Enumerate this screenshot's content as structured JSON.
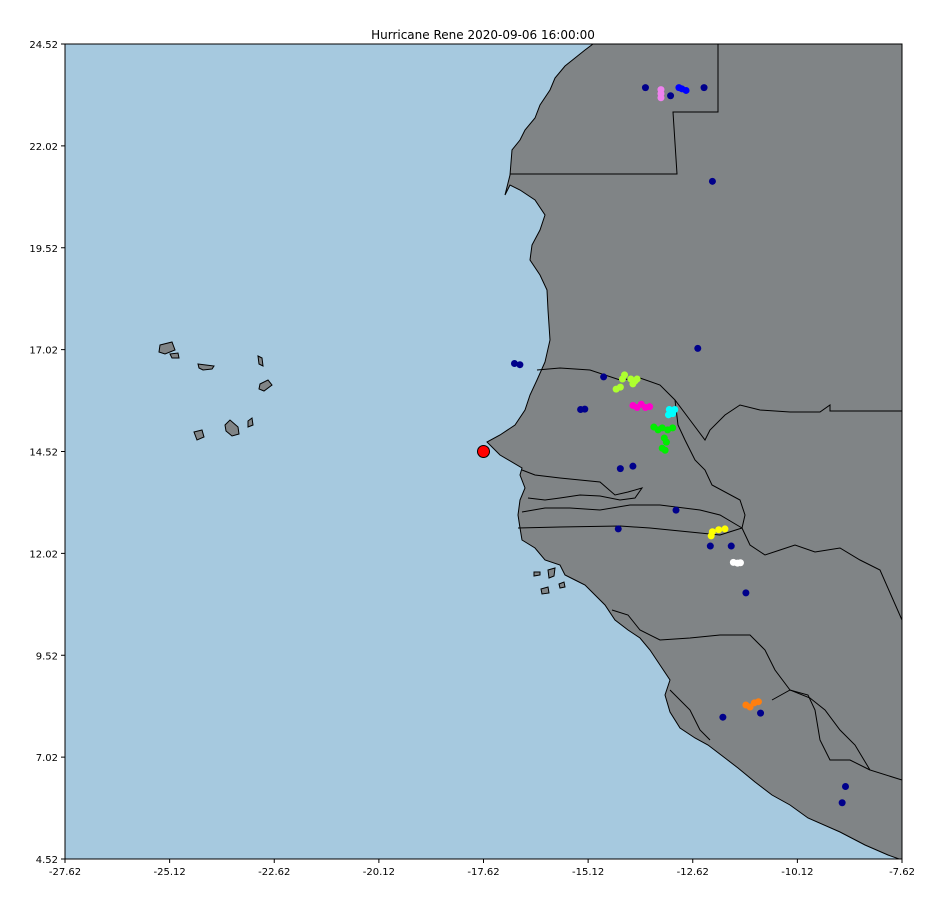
{
  "title": "Hurricane Rene 2020-09-06 16:00:00",
  "colors": {
    "ocean": "#a6c9df",
    "land": "#808486",
    "border": "#000000",
    "hurricane_marker": "#ff0000",
    "station_default": "#00008b"
  },
  "chart_data": {
    "type": "scatter",
    "title": "Hurricane Rene 2020-09-06 16:00:00",
    "xlim": [
      -27.62,
      -7.62
    ],
    "ylim": [
      4.52,
      24.52
    ],
    "x_ticks": [
      "-27.62",
      "-25.12",
      "-22.62",
      "-20.12",
      "-17.62",
      "-15.12",
      "-12.62",
      "-10.12",
      "-7.62"
    ],
    "y_ticks": [
      "4.52",
      "7.02",
      "9.52",
      "12.02",
      "14.52",
      "17.02",
      "19.52",
      "22.02",
      "24.52"
    ],
    "hurricane_position": {
      "lon": -17.62,
      "lat": 14.52,
      "color": "#ff0000"
    },
    "series": [
      {
        "color": "#00008b",
        "points": [
          [
            -13.75,
            23.45
          ],
          [
            -13.15,
            23.25
          ],
          [
            -12.35,
            23.45
          ],
          [
            -12.15,
            21.15
          ],
          [
            -12.5,
            17.05
          ],
          [
            -16.75,
            16.65
          ],
          [
            -16.88,
            16.68
          ],
          [
            -14.75,
            16.35
          ],
          [
            -15.2,
            15.56
          ],
          [
            -15.3,
            15.55
          ],
          [
            -14.35,
            14.1
          ],
          [
            -14.05,
            14.16
          ],
          [
            -13.02,
            13.08
          ],
          [
            -14.4,
            12.62
          ],
          [
            -12.2,
            12.2
          ],
          [
            -11.7,
            12.2
          ],
          [
            -11.35,
            11.05
          ],
          [
            -11.9,
            8.0
          ],
          [
            -11.0,
            8.1
          ],
          [
            -8.97,
            6.3
          ],
          [
            -9.05,
            5.9
          ]
        ]
      },
      {
        "color": "#ee82ee",
        "points": [
          [
            -13.38,
            23.4
          ],
          [
            -13.38,
            23.3
          ],
          [
            -13.38,
            23.2
          ]
        ]
      },
      {
        "color": "#0000ff",
        "points": [
          [
            -12.95,
            23.45
          ],
          [
            -12.88,
            23.42
          ],
          [
            -12.78,
            23.38
          ]
        ]
      },
      {
        "color": "#adff2f",
        "points": [
          [
            -14.3,
            16.3
          ],
          [
            -14.25,
            16.4
          ],
          [
            -14.1,
            16.3
          ],
          [
            -14.0,
            16.25
          ],
          [
            -13.95,
            16.3
          ],
          [
            -14.05,
            16.18
          ],
          [
            -14.35,
            16.1
          ],
          [
            -14.45,
            16.05
          ]
        ]
      },
      {
        "color": "#ff00cc",
        "points": [
          [
            -14.05,
            15.65
          ],
          [
            -13.95,
            15.6
          ],
          [
            -13.85,
            15.68
          ],
          [
            -13.75,
            15.6
          ],
          [
            -13.65,
            15.62
          ]
        ]
      },
      {
        "color": "#00ffff",
        "points": [
          [
            -13.18,
            15.55
          ],
          [
            -13.05,
            15.55
          ],
          [
            -13.1,
            15.45
          ],
          [
            -13.2,
            15.42
          ]
        ]
      },
      {
        "color": "#00ee00",
        "points": [
          [
            -13.55,
            15.12
          ],
          [
            -13.45,
            15.05
          ],
          [
            -13.35,
            15.1
          ],
          [
            -13.22,
            15.05
          ],
          [
            -13.1,
            15.1
          ],
          [
            -13.3,
            14.85
          ],
          [
            -13.25,
            14.75
          ],
          [
            -13.35,
            14.6
          ],
          [
            -13.28,
            14.55
          ]
        ]
      },
      {
        "color": "#ffff00",
        "points": [
          [
            -12.15,
            12.55
          ],
          [
            -12.0,
            12.6
          ],
          [
            -11.85,
            12.62
          ],
          [
            -12.18,
            12.45
          ]
        ]
      },
      {
        "color": "#ffffff",
        "points": [
          [
            -11.65,
            11.8
          ],
          [
            -11.55,
            11.78
          ],
          [
            -11.48,
            11.79
          ]
        ]
      },
      {
        "color": "#ff7f0e",
        "points": [
          [
            -11.35,
            8.3
          ],
          [
            -11.25,
            8.25
          ],
          [
            -11.15,
            8.35
          ],
          [
            -11.05,
            8.38
          ]
        ]
      }
    ]
  }
}
